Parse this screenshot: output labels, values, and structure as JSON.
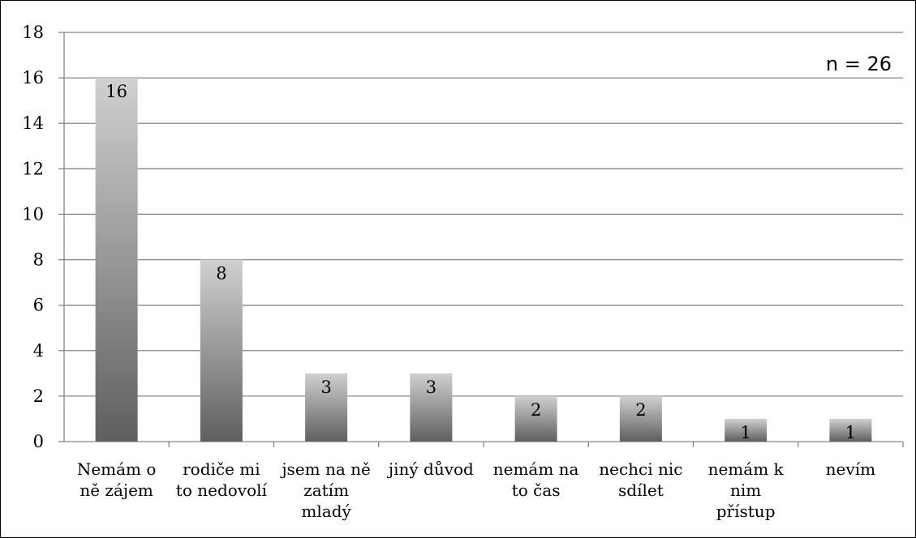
{
  "chart_data": {
    "type": "bar",
    "categories": [
      [
        "Nemám o",
        "ně zájem"
      ],
      [
        "rodiče mi",
        "to nedovolí"
      ],
      [
        "jsem na ně",
        "zatím",
        "mladý"
      ],
      [
        "jiný důvod"
      ],
      [
        "nemám na",
        "to čas"
      ],
      [
        "nechci nic",
        "sdílet"
      ],
      [
        "nemám k",
        "nim",
        "přístup"
      ],
      [
        "nevím"
      ]
    ],
    "values": [
      16,
      8,
      3,
      3,
      2,
      2,
      1,
      1
    ],
    "data_labels": [
      "16",
      "8",
      "3",
      "3",
      "2",
      "2",
      "1",
      "1"
    ],
    "ylim": [
      0,
      18
    ],
    "yticks": [
      "0",
      "2",
      "4",
      "6",
      "8",
      "10",
      "12",
      "14",
      "16",
      "18"
    ],
    "grid": true,
    "legend": "none",
    "annotation": "n = 26",
    "colors": {
      "bar_top": "#d0d0d0",
      "bar_bottom": "#5f5f5f",
      "grid": "#868686",
      "axis": "#868686"
    }
  }
}
